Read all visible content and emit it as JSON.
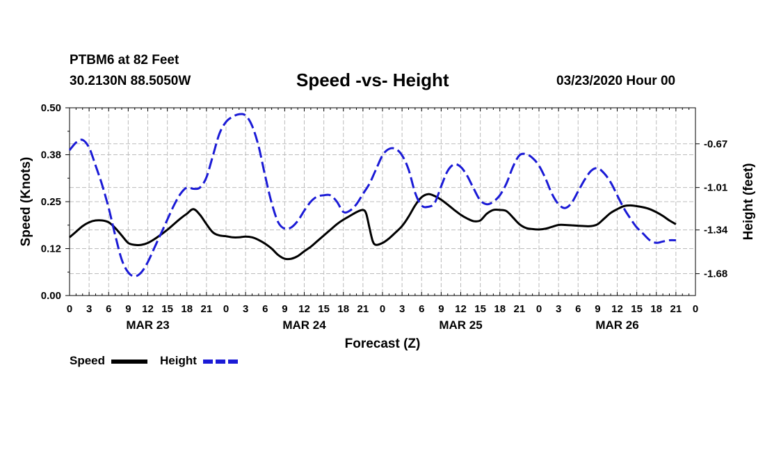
{
  "header": {
    "station": "PTBM6 at 82 Feet",
    "coords": "30.2130N 88.5050W",
    "title": "Speed -vs- Height",
    "datetime": "03/23/2020 Hour 00"
  },
  "colors": {
    "speed": "#000000",
    "height": "#1a1ad6",
    "grid": "#bbbbbb"
  },
  "chart_data": {
    "type": "line",
    "title": "Speed -vs- Height",
    "xlabel": "Forecast (Z)",
    "ylabel": "Speed (Knots)",
    "y2label": "Height (feet)",
    "xlim": [
      0,
      96
    ],
    "ylim": [
      0,
      0.5
    ],
    "y2lim": [
      -1.85,
      -0.39
    ],
    "yticks": [
      "0.00",
      "0.12",
      "0.25",
      "0.38",
      "0.50"
    ],
    "yticks_values": [
      0,
      0.125,
      0.25,
      0.375,
      0.5
    ],
    "y2ticks": [
      "-0.67",
      "-1.01",
      "-1.34",
      "-1.68"
    ],
    "y2ticks_values": [
      -0.67,
      -1.01,
      -1.34,
      -1.68
    ],
    "xtick_labels": [
      "0",
      "3",
      "6",
      "9",
      "12",
      "15",
      "18",
      "21",
      "0",
      "3",
      "6",
      "9",
      "12",
      "15",
      "18",
      "21",
      "0",
      "3",
      "6",
      "9",
      "12",
      "15",
      "18",
      "21",
      "0",
      "3",
      "6",
      "9",
      "12",
      "15",
      "18",
      "21",
      "0"
    ],
    "day_labels": [
      {
        "label": "MAR 23",
        "hour": 12
      },
      {
        "label": "MAR 24",
        "hour": 36
      },
      {
        "label": "MAR 25",
        "hour": 60
      },
      {
        "label": "MAR 26",
        "hour": 84
      }
    ],
    "grid": true,
    "series": [
      {
        "name": "Speed",
        "axis": "left",
        "style": "solid",
        "points": [
          [
            0,
            0.155
          ],
          [
            1,
            0.17
          ],
          [
            2,
            0.185
          ],
          [
            3,
            0.195
          ],
          [
            4,
            0.2
          ],
          [
            5,
            0.2
          ],
          [
            6,
            0.195
          ],
          [
            7,
            0.18
          ],
          [
            8,
            0.16
          ],
          [
            9,
            0.14
          ],
          [
            10,
            0.135
          ],
          [
            11,
            0.135
          ],
          [
            12,
            0.14
          ],
          [
            13,
            0.15
          ],
          [
            14,
            0.162
          ],
          [
            15,
            0.175
          ],
          [
            16,
            0.19
          ],
          [
            17,
            0.205
          ],
          [
            18,
            0.218
          ],
          [
            19,
            0.23
          ],
          [
            20,
            0.215
          ],
          [
            21,
            0.19
          ],
          [
            22,
            0.168
          ],
          [
            23,
            0.16
          ],
          [
            24,
            0.158
          ],
          [
            25,
            0.155
          ],
          [
            26,
            0.155
          ],
          [
            27,
            0.157
          ],
          [
            28,
            0.155
          ],
          [
            29,
            0.148
          ],
          [
            30,
            0.138
          ],
          [
            31,
            0.125
          ],
          [
            32,
            0.108
          ],
          [
            33,
            0.098
          ],
          [
            34,
            0.098
          ],
          [
            35,
            0.105
          ],
          [
            36,
            0.118
          ],
          [
            37,
            0.13
          ],
          [
            38,
            0.145
          ],
          [
            39,
            0.16
          ],
          [
            40,
            0.175
          ],
          [
            41,
            0.19
          ],
          [
            42,
            0.202
          ],
          [
            43,
            0.212
          ],
          [
            44,
            0.222
          ],
          [
            45,
            0.228
          ],
          [
            45.5,
            0.218
          ],
          [
            46,
            0.18
          ],
          [
            46.5,
            0.145
          ],
          [
            47,
            0.135
          ],
          [
            48,
            0.14
          ],
          [
            49,
            0.152
          ],
          [
            50,
            0.168
          ],
          [
            51,
            0.185
          ],
          [
            52,
            0.21
          ],
          [
            53,
            0.24
          ],
          [
            54,
            0.262
          ],
          [
            55,
            0.27
          ],
          [
            56,
            0.265
          ],
          [
            57,
            0.255
          ],
          [
            58,
            0.242
          ],
          [
            59,
            0.228
          ],
          [
            60,
            0.215
          ],
          [
            61,
            0.205
          ],
          [
            62,
            0.198
          ],
          [
            63,
            0.2
          ],
          [
            64,
            0.218
          ],
          [
            65,
            0.228
          ],
          [
            66,
            0.228
          ],
          [
            67,
            0.225
          ],
          [
            68,
            0.208
          ],
          [
            69,
            0.19
          ],
          [
            70,
            0.18
          ],
          [
            71,
            0.177
          ],
          [
            72,
            0.176
          ],
          [
            73,
            0.178
          ],
          [
            74,
            0.183
          ],
          [
            75,
            0.188
          ],
          [
            76,
            0.188
          ],
          [
            77,
            0.187
          ],
          [
            78,
            0.186
          ],
          [
            79,
            0.185
          ],
          [
            80,
            0.185
          ],
          [
            81,
            0.19
          ],
          [
            82,
            0.205
          ],
          [
            83,
            0.22
          ],
          [
            84,
            0.23
          ],
          [
            85,
            0.238
          ],
          [
            86,
            0.24
          ],
          [
            87,
            0.238
          ],
          [
            88,
            0.235
          ],
          [
            89,
            0.23
          ],
          [
            90,
            0.222
          ],
          [
            91,
            0.212
          ],
          [
            92,
            0.2
          ],
          [
            93,
            0.19
          ]
        ]
      },
      {
        "name": "Height",
        "axis": "right",
        "style": "dashed",
        "points": [
          [
            0,
            -0.72
          ],
          [
            1,
            -0.66
          ],
          [
            2,
            -0.64
          ],
          [
            3,
            -0.7
          ],
          [
            4,
            -0.84
          ],
          [
            5,
            -0.99
          ],
          [
            6,
            -1.17
          ],
          [
            7,
            -1.38
          ],
          [
            8,
            -1.57
          ],
          [
            9,
            -1.67
          ],
          [
            10,
            -1.7
          ],
          [
            11,
            -1.67
          ],
          [
            12,
            -1.59
          ],
          [
            13,
            -1.48
          ],
          [
            14,
            -1.37
          ],
          [
            15,
            -1.26
          ],
          [
            16,
            -1.15
          ],
          [
            17,
            -1.06
          ],
          [
            18,
            -1.01
          ],
          [
            19,
            -1.02
          ],
          [
            20,
            -1.01
          ],
          [
            21,
            -0.93
          ],
          [
            22,
            -0.76
          ],
          [
            23,
            -0.59
          ],
          [
            24,
            -0.5
          ],
          [
            25,
            -0.46
          ],
          [
            26,
            -0.44
          ],
          [
            27,
            -0.45
          ],
          [
            28,
            -0.53
          ],
          [
            29,
            -0.69
          ],
          [
            30,
            -0.92
          ],
          [
            31,
            -1.13
          ],
          [
            32,
            -1.28
          ],
          [
            33,
            -1.33
          ],
          [
            34,
            -1.32
          ],
          [
            35,
            -1.27
          ],
          [
            36,
            -1.19
          ],
          [
            37,
            -1.12
          ],
          [
            38,
            -1.08
          ],
          [
            39,
            -1.07
          ],
          [
            40,
            -1.07
          ],
          [
            41,
            -1.12
          ],
          [
            42,
            -1.2
          ],
          [
            43,
            -1.19
          ],
          [
            44,
            -1.14
          ],
          [
            45,
            -1.06
          ],
          [
            46,
            -0.98
          ],
          [
            47,
            -0.87
          ],
          [
            48,
            -0.76
          ],
          [
            49,
            -0.71
          ],
          [
            50,
            -0.71
          ],
          [
            51,
            -0.76
          ],
          [
            52,
            -0.87
          ],
          [
            53,
            -1.05
          ],
          [
            54,
            -1.15
          ],
          [
            55,
            -1.16
          ],
          [
            56,
            -1.13
          ],
          [
            57,
            -1.0
          ],
          [
            58,
            -0.88
          ],
          [
            59,
            -0.83
          ],
          [
            60,
            -0.85
          ],
          [
            61,
            -0.92
          ],
          [
            62,
            -1.02
          ],
          [
            63,
            -1.11
          ],
          [
            64,
            -1.14
          ],
          [
            65,
            -1.12
          ],
          [
            66,
            -1.07
          ],
          [
            67,
            -0.98
          ],
          [
            68,
            -0.85
          ],
          [
            69,
            -0.76
          ],
          [
            70,
            -0.75
          ],
          [
            71,
            -0.78
          ],
          [
            72,
            -0.84
          ],
          [
            73,
            -0.94
          ],
          [
            74,
            -1.06
          ],
          [
            75,
            -1.14
          ],
          [
            76,
            -1.17
          ],
          [
            77,
            -1.13
          ],
          [
            78,
            -1.04
          ],
          [
            79,
            -0.95
          ],
          [
            80,
            -0.88
          ],
          [
            81,
            -0.86
          ],
          [
            82,
            -0.9
          ],
          [
            83,
            -0.97
          ],
          [
            84,
            -1.07
          ],
          [
            85,
            -1.17
          ],
          [
            86,
            -1.25
          ],
          [
            87,
            -1.32
          ],
          [
            88,
            -1.37
          ],
          [
            89,
            -1.42
          ],
          [
            90,
            -1.44
          ],
          [
            91,
            -1.43
          ],
          [
            92,
            -1.42
          ],
          [
            93,
            -1.42
          ]
        ]
      }
    ],
    "legend": {
      "placement": "bottom-left"
    }
  }
}
